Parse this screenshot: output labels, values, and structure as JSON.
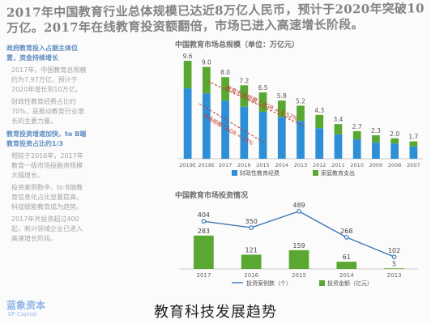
{
  "headline": "2017年中国教育行业总体规模已达近8万亿人民币，预计于2020年突破10万亿。2017年在线教育投资额翻倍，市场已进入高速增长阶段。",
  "left_col": {
    "section1_title": "政府教育投入占据主体位置，资金持续增长",
    "section1_bullets": [
      "2017年，中国教育总规模约为7.97万亿，预计于2020年增长到10万亿。",
      "财政性教育经费占比约70%，是推动教育行业增长的主要力量。"
    ],
    "section2_title": "教育投资增速加快，to B端教育投资占比约1/3",
    "section2_bullets": [
      "相较于2016年，2017年教育一级市场投融资规模大幅增长。",
      "投资案例数中，to B端教育信息化占比显著提高，科技赋能教育成为趋势。",
      "2017年共投资超过400起，新兴领域企业已进入高速增长阶段。"
    ]
  },
  "chart_data": [
    {
      "type": "bar",
      "title": "中国教育市场总规模（单位：万亿元）",
      "categories": [
        "2019E",
        "2018E",
        "2017",
        "2016",
        "2015",
        "2014",
        "2013",
        "2012",
        "2011",
        "2010",
        "2009",
        "2008",
        "2007"
      ],
      "series": [
        {
          "name": "财政性教育经费",
          "values": [
            6.9,
            6.4,
            5.7,
            5.1,
            4.6,
            4.1,
            3.7,
            3.0,
            2.4,
            1.9,
            1.6,
            1.5,
            1.2
          ]
        },
        {
          "name": "家庭教育支出",
          "values": [
            2.7,
            2.6,
            2.3,
            2.1,
            1.9,
            1.6,
            1.5,
            1.3,
            1.0,
            0.8,
            0.7,
            0.5,
            0.5
          ]
        }
      ],
      "annotations": [
        "教育市场规模 CAGR = 8.52%",
        "市场规模 CAGR = 23%"
      ],
      "top_labels": [
        "9.6",
        "9.0",
        "8.0",
        "7.2",
        "6.5",
        "5.8",
        "5.2",
        "4.3",
        "3.4",
        "2.7",
        "2.3",
        "2.0",
        "1.7"
      ],
      "ylim": [
        0,
        10
      ]
    },
    {
      "type": "bar",
      "title": "中国教育市场投资情况",
      "categories": [
        "2017",
        "2016",
        "2015",
        "2014",
        "2013"
      ],
      "series": [
        {
          "name": "投资案例数（个）",
          "type": "line",
          "values": [
            404,
            350,
            489,
            268,
            102
          ]
        },
        {
          "name": "投资金额（亿元）",
          "type": "bar",
          "values": [
            283,
            121,
            159,
            61,
            5
          ]
        }
      ],
      "ylim": [
        0,
        550
      ]
    }
  ],
  "colors": {
    "financial": "#5aa832",
    "household": "#2f8fd6",
    "line": "#3a78b5",
    "bar2": "#5aa832",
    "annotation": "#c0392b"
  },
  "caption": "教育科技发展趋势",
  "watermark": "蓝象资本",
  "watermark_sub": "EP Capital"
}
